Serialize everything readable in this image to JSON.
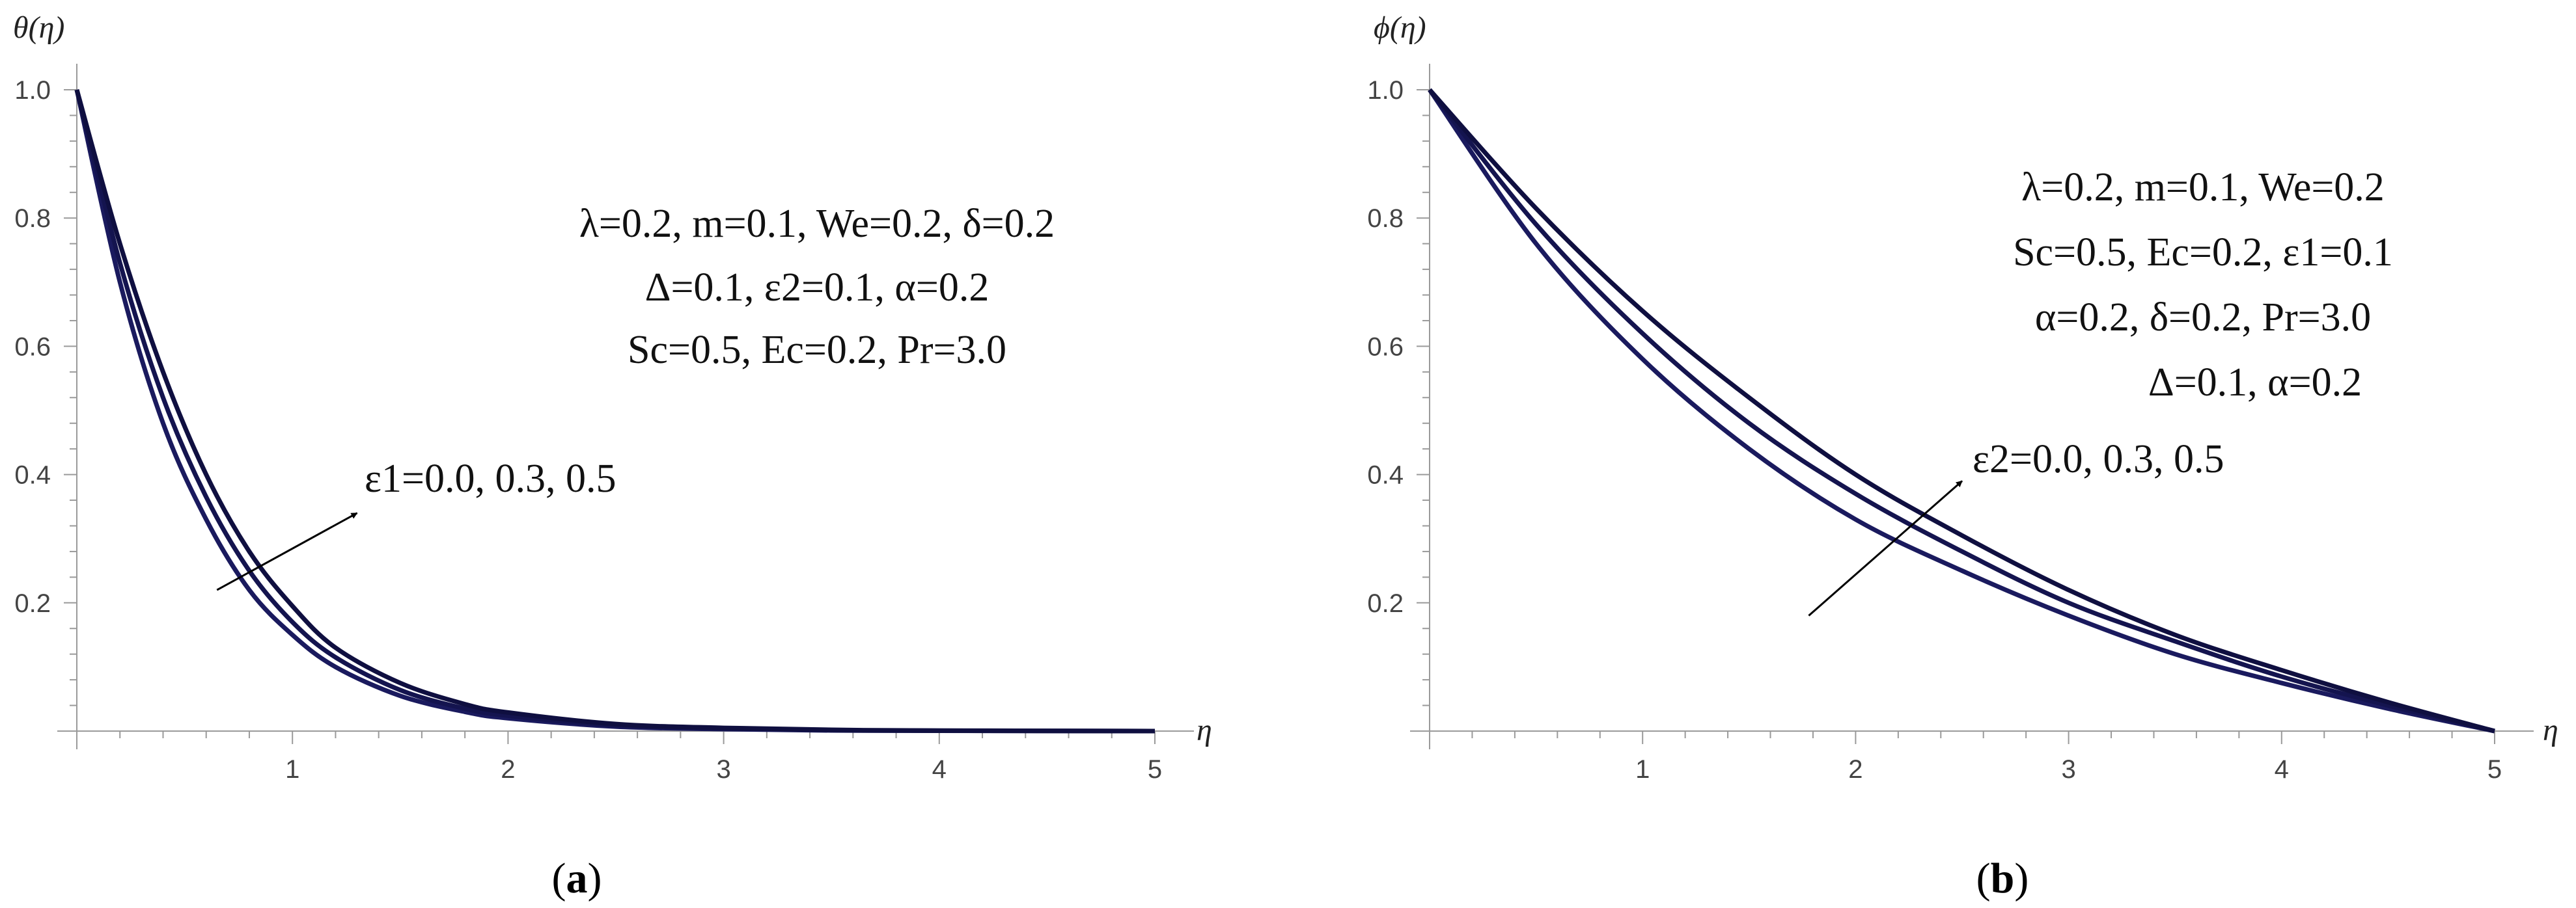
{
  "chart_data": [
    {
      "type": "line",
      "panel": "(a)",
      "panel_letter": "a",
      "xlabel": "η",
      "ylabel": "θ(η)",
      "xlim": [
        0,
        5
      ],
      "ylim": [
        0,
        1
      ],
      "x_ticks": [
        1,
        2,
        3,
        4,
        5
      ],
      "x_tick_labels": [
        "1",
        "2",
        "3",
        "4",
        "5"
      ],
      "y_ticks": [
        0.2,
        0.4,
        0.6,
        0.8,
        1.0
      ],
      "y_tick_labels": [
        "0.2",
        "0.4",
        "0.6",
        "0.8",
        "1.0"
      ],
      "grid": false,
      "series": [
        {
          "x": [
            0,
            0.2,
            0.4,
            0.6,
            0.8,
            1.0,
            1.2,
            1.5,
            1.8,
            2.0,
            2.5,
            3.0,
            3.5,
            4.0,
            5.0
          ],
          "values": [
            1.0,
            0.7,
            0.48,
            0.33,
            0.22,
            0.15,
            0.1,
            0.055,
            0.03,
            0.02,
            0.007,
            0.003,
            0.001,
            0.0005,
            0.0
          ]
        },
        {
          "x": [
            0,
            0.2,
            0.4,
            0.6,
            0.8,
            1.0,
            1.2,
            1.5,
            1.8,
            2.0,
            2.5,
            3.0,
            3.5,
            4.0,
            5.0
          ],
          "values": [
            1.0,
            0.73,
            0.52,
            0.365,
            0.25,
            0.17,
            0.115,
            0.064,
            0.035,
            0.024,
            0.009,
            0.004,
            0.0015,
            0.0006,
            0.0
          ]
        },
        {
          "x": [
            0,
            0.2,
            0.4,
            0.6,
            0.8,
            1.0,
            1.2,
            1.5,
            1.8,
            2.0,
            2.5,
            3.0,
            3.5,
            4.0,
            5.0
          ],
          "values": [
            1.0,
            0.76,
            0.56,
            0.4,
            0.28,
            0.195,
            0.13,
            0.075,
            0.042,
            0.029,
            0.011,
            0.005,
            0.002,
            0.0008,
            0.0
          ]
        }
      ],
      "params": [
        "λ=0.2, m=0.1, We=0.2, δ=0.2",
        "Δ=0.1, ε2=0.1, α=0.2",
        "Sc=0.5, Ec=0.2, Pr=3.0"
      ],
      "arrow_label": "ε1=0.0, 0.3, 0.5",
      "arrow": {
        "from": [
          0.65,
          0.22
        ],
        "to": [
          1.3,
          0.34
        ]
      }
    },
    {
      "type": "line",
      "panel": "(b)",
      "panel_letter": "b",
      "xlabel": "η",
      "ylabel": "ϕ(η)",
      "xlim": [
        0,
        5
      ],
      "ylim": [
        0,
        1
      ],
      "x_ticks": [
        1,
        2,
        3,
        4,
        5
      ],
      "x_tick_labels": [
        "1",
        "2",
        "3",
        "4",
        "5"
      ],
      "y_ticks": [
        0.2,
        0.4,
        0.6,
        0.8,
        1.0
      ],
      "y_tick_labels": [
        "0.2",
        "0.4",
        "0.6",
        "0.8",
        "1.0"
      ],
      "grid": false,
      "series": [
        {
          "x": [
            0,
            0.5,
            1.0,
            1.5,
            2.0,
            2.5,
            3.0,
            3.5,
            4.0,
            4.5,
            5.0
          ],
          "values": [
            1.0,
            0.76,
            0.58,
            0.44,
            0.33,
            0.25,
            0.18,
            0.12,
            0.075,
            0.035,
            0.0
          ]
        },
        {
          "x": [
            0,
            0.5,
            1.0,
            1.5,
            2.0,
            2.5,
            3.0,
            3.5,
            4.0,
            4.5,
            5.0
          ],
          "values": [
            1.0,
            0.79,
            0.62,
            0.48,
            0.37,
            0.28,
            0.2,
            0.14,
            0.085,
            0.04,
            0.0
          ]
        },
        {
          "x": [
            0,
            0.5,
            1.0,
            1.5,
            2.0,
            2.5,
            3.0,
            3.5,
            4.0,
            4.5,
            5.0
          ],
          "values": [
            1.0,
            0.815,
            0.655,
            0.52,
            0.4,
            0.305,
            0.22,
            0.15,
            0.095,
            0.045,
            0.0
          ]
        }
      ],
      "params": [
        "λ=0.2, m=0.1, We=0.2",
        "Sc=0.5, Ec=0.2, ε1=0.1",
        "α=0.2, δ=0.2, Pr=3.0",
        "Δ=0.1, α=0.2"
      ],
      "arrow_label": "ε2=0.0, 0.3, 0.5",
      "arrow": {
        "from": [
          1.78,
          0.18
        ],
        "to": [
          2.5,
          0.39
        ]
      }
    }
  ]
}
